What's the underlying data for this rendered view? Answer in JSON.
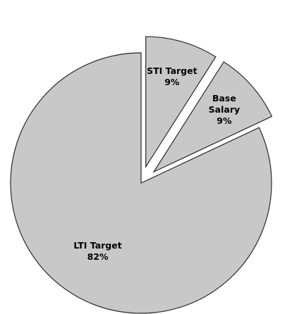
{
  "chart_data": {
    "type": "pie",
    "title": "",
    "slices": [
      {
        "label": "STI Target",
        "value_label": "9%",
        "value": 9,
        "color": "#c8c8c8",
        "exploded": true
      },
      {
        "label": "Base Salary",
        "value_label": "9%",
        "value": 9,
        "color": "#c8c8c8",
        "exploded": true
      },
      {
        "label": "LTI Target",
        "value_label": "82%",
        "value": 82,
        "color": "#c8c8c8",
        "exploded": false
      }
    ],
    "legend": "none"
  }
}
